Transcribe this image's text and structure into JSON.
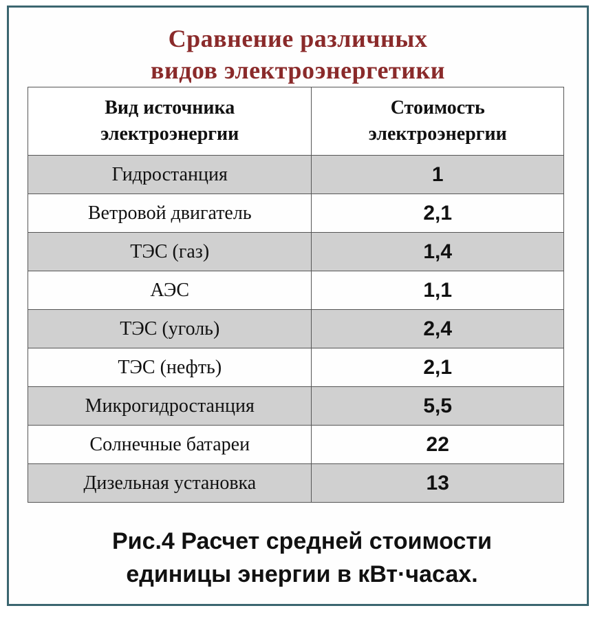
{
  "title": {
    "line1": "Сравнение различных",
    "line2": "видов электроэнергетики"
  },
  "table": {
    "headers": {
      "source": [
        "Вид источника",
        "электроэнергии"
      ],
      "cost": [
        "Стоимость",
        "электроэнергии"
      ]
    },
    "rows": [
      {
        "source": "Гидростанция",
        "cost": "1"
      },
      {
        "source": "Ветровой двигатель",
        "cost": "2,1"
      },
      {
        "source": "ТЭС (газ)",
        "cost": "1,4"
      },
      {
        "source": "АЭС",
        "cost": "1,1"
      },
      {
        "source": "ТЭС (уголь)",
        "cost": "2,4"
      },
      {
        "source": "ТЭС (нефть)",
        "cost": "2,1"
      },
      {
        "source": "Микрогидростанция",
        "cost": "5,5"
      },
      {
        "source": "Солнечные батареи",
        "cost": "22"
      },
      {
        "source": "Дизельная установка",
        "cost": "13"
      }
    ]
  },
  "caption": {
    "line1": "Рис.4 Расчет средней стоимости",
    "line2": "единицы энергии в кВт·часах."
  },
  "colors": {
    "title": "#8a2a2a",
    "frame": "#3b6670",
    "shaded_row": "#d0d0d0"
  }
}
